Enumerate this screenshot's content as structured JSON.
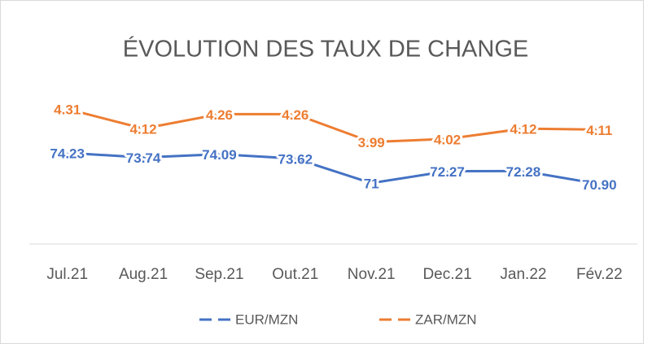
{
  "chart_data": {
    "type": "line",
    "title": "ÉVOLUTION DES TAUX DE CHANGE",
    "categories": [
      "Jul.21",
      "Aug.21",
      "Sep.21",
      "Out.21",
      "Nov.21",
      "Dec.21",
      "Jan.22",
      "Fév.22"
    ],
    "series": [
      {
        "name": "EUR/MZN",
        "color": "#4472c4",
        "values": [
          74.23,
          73.74,
          74.09,
          73.62,
          71,
          72.27,
          72.28,
          70.9
        ],
        "value_labels": [
          "74.23",
          "73.74",
          "74.09",
          "73.62",
          "71",
          "72.27",
          "72.28",
          "70.90"
        ]
      },
      {
        "name": "ZAR/MZN",
        "color": "#ed7d31",
        "axis": "y2",
        "values": [
          4.31,
          4.12,
          4.26,
          4.26,
          3.99,
          4.02,
          4.12,
          4.11
        ]
      }
    ],
    "ylim": [
      64.5,
      81
    ],
    "y2lim": [
      3.0,
      4.5
    ],
    "legend": "bottom"
  }
}
